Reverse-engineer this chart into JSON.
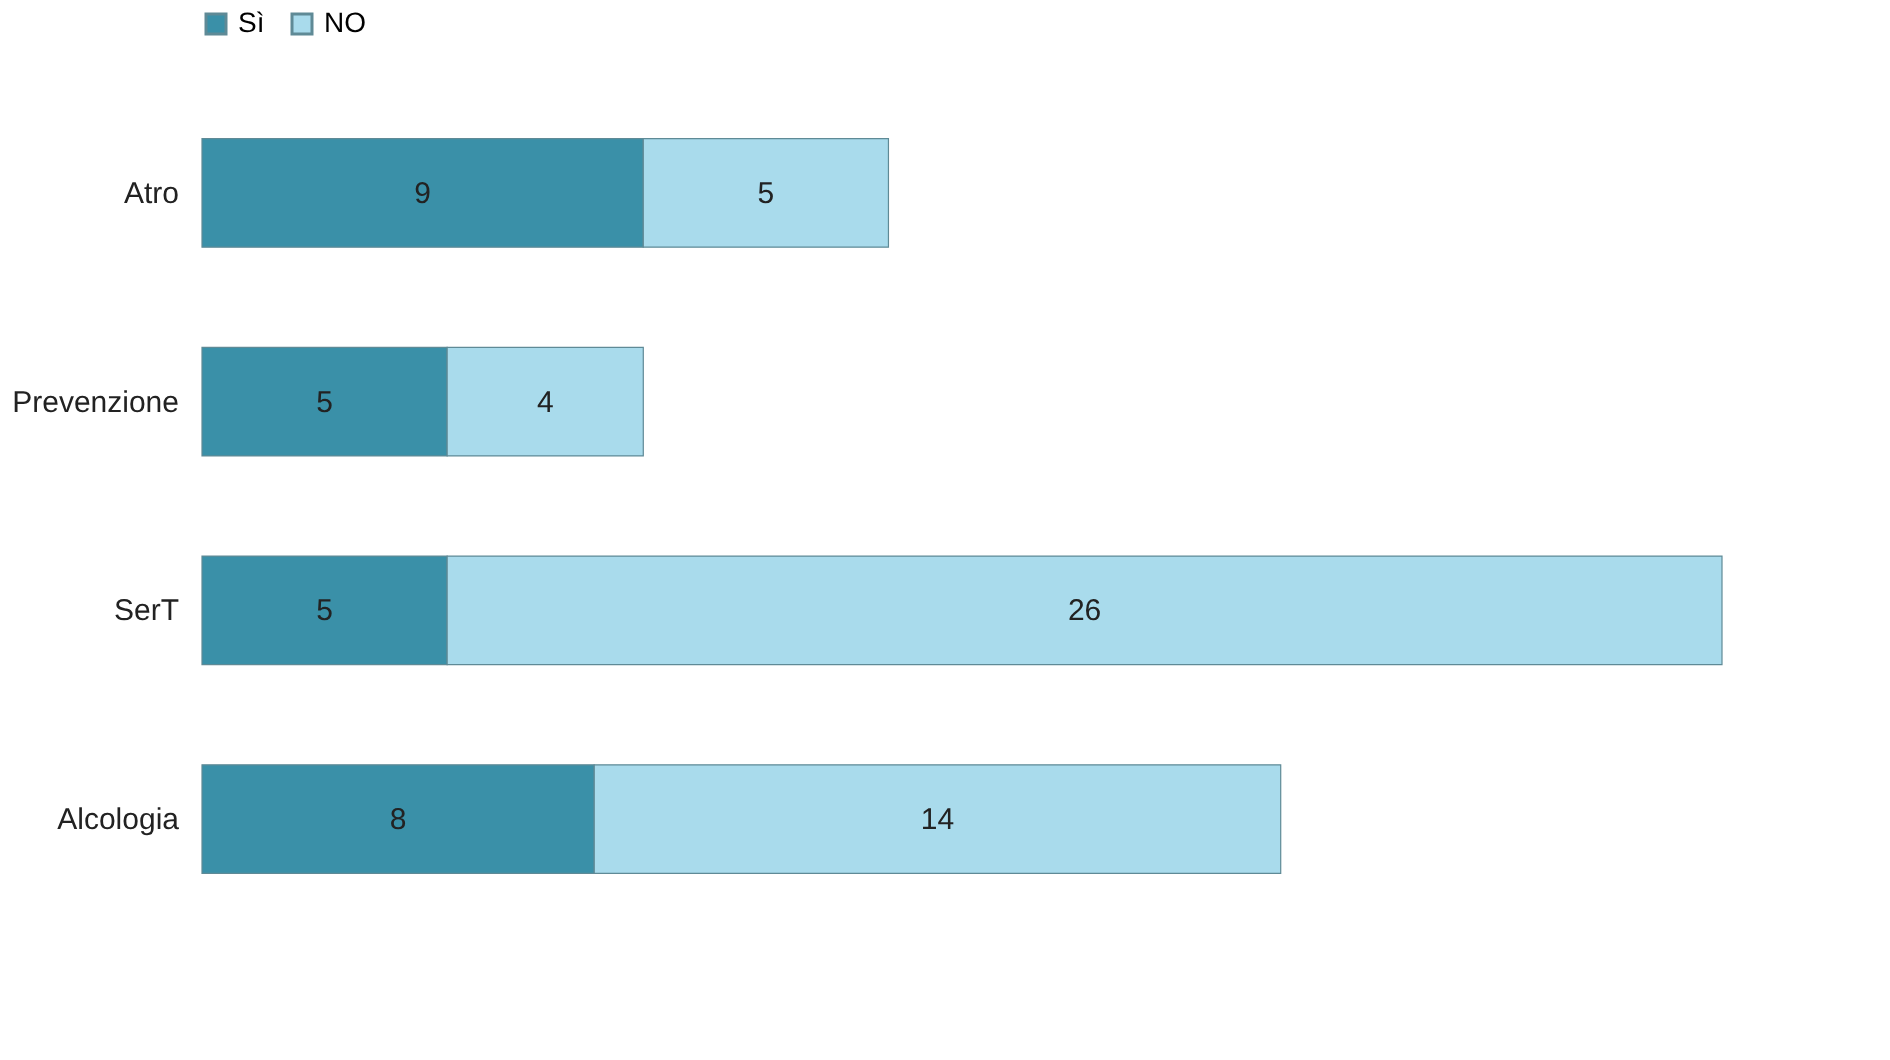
{
  "chart_data": {
    "type": "bar",
    "orientation": "horizontal",
    "stacked": true,
    "categories": [
      "Atro",
      "Prevenzione",
      "SerT",
      "Alcologia"
    ],
    "series": [
      {
        "name": "Sì",
        "color": "#3a90a8",
        "values": [
          9,
          5,
          5,
          8
        ]
      },
      {
        "name": "NO",
        "color": "#a9dbec",
        "values": [
          5,
          4,
          26,
          14
        ]
      }
    ],
    "data_labels": true,
    "legend": "top",
    "tick_labels": "y"
  }
}
